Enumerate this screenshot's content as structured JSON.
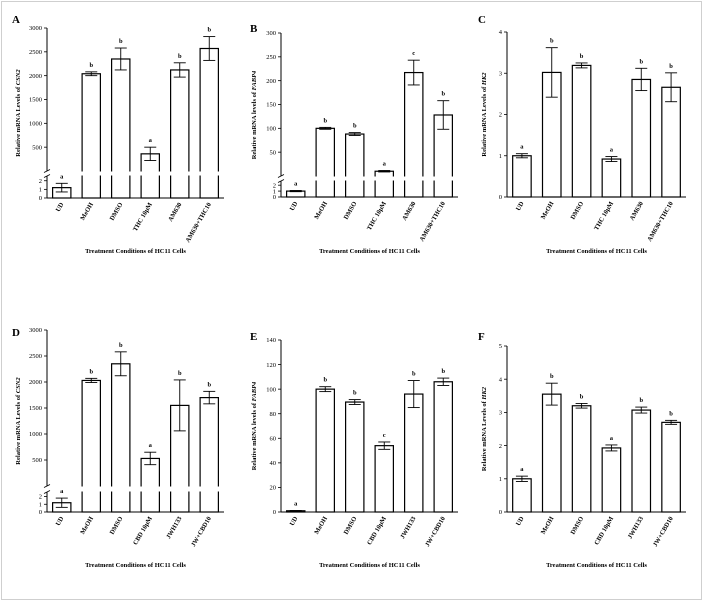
{
  "figure": {
    "type": "multi-panel bar chart"
  },
  "chart_data": [
    {
      "panel": "A",
      "type": "bar",
      "broken_axis": true,
      "title": "",
      "ylabel_prefix": "Relative mRNA Levels of ",
      "ylabel_gene": "CSN2",
      "xlabel": "Treatment Conditions of HC11 Cells",
      "categories": [
        "UD",
        "MeOH",
        "DMSO",
        "THC 10μM",
        "AM630",
        "AM630+THC10"
      ],
      "values": [
        1.2,
        2040,
        2350,
        360,
        2120,
        2570
      ],
      "errors": [
        0.5,
        40,
        230,
        140,
        150,
        250
      ],
      "letters": [
        "a",
        "b",
        "b",
        "a",
        "b",
        "b"
      ],
      "lower_ticks": [
        0,
        1,
        2
      ],
      "lower_ylim": [
        0,
        2.2
      ],
      "upper_ticks": [
        500,
        1000,
        1500,
        2000,
        2500,
        3000
      ],
      "upper_ylim": [
        0,
        3000
      ]
    },
    {
      "panel": "B",
      "type": "bar",
      "broken_axis": true,
      "title": "",
      "ylabel_prefix": "Relative mRNA levels of ",
      "ylabel_gene": "FABP4",
      "xlabel": "Treatment Conditions of HC11 Cells",
      "categories": [
        "UD",
        "MeOH",
        "DMSO",
        "THC 10μM",
        "AM630",
        "AM630+THC10"
      ],
      "values": [
        1.0,
        100,
        88,
        10,
        217,
        128
      ],
      "errors": [
        0.1,
        2,
        3,
        1.5,
        26,
        30
      ],
      "letters": [
        "a",
        "b",
        "b",
        "a",
        "c",
        "b"
      ],
      "lower_ticks": [
        0,
        1,
        2
      ],
      "lower_ylim": [
        0,
        2.2
      ],
      "upper_ticks": [
        50,
        100,
        150,
        200,
        250,
        300
      ],
      "upper_ylim": [
        0,
        300
      ]
    },
    {
      "panel": "C",
      "type": "bar",
      "broken_axis": false,
      "title": "",
      "ylabel_prefix": "Relative mRNA Levels of ",
      "ylabel_gene": "HK2",
      "xlabel": "Treatment Conditions of HC11 Cells",
      "categories": [
        "UD",
        "MeOH",
        "DMSO",
        "THC 10μM",
        "AM630",
        "AM630+THC10"
      ],
      "values": [
        1.0,
        3.02,
        3.19,
        0.92,
        2.85,
        2.66
      ],
      "errors": [
        0.05,
        0.6,
        0.06,
        0.06,
        0.27,
        0.35
      ],
      "letters": [
        "a",
        "b",
        "b",
        "a",
        "b",
        "b"
      ],
      "ticks": [
        0,
        1,
        2,
        3,
        4
      ],
      "ylim": [
        0,
        4
      ]
    },
    {
      "panel": "D",
      "type": "bar",
      "broken_axis": true,
      "title": "",
      "ylabel_prefix": "Relative mRNA Levels of ",
      "ylabel_gene": "CSN2",
      "xlabel": "Treatment Conditions of HC11 Cells",
      "categories": [
        "UD",
        "MeOH",
        "DMSO",
        "CBD 10μM",
        "JWH133",
        "JW+CBD10"
      ],
      "values": [
        1.2,
        2030,
        2350,
        530,
        1550,
        1700
      ],
      "errors": [
        0.6,
        40,
        230,
        120,
        490,
        120
      ],
      "letters": [
        "a",
        "b",
        "b",
        "a",
        "b",
        "b"
      ],
      "lower_ticks": [
        0,
        1,
        2
      ],
      "lower_ylim": [
        0,
        2.2
      ],
      "upper_ticks": [
        500,
        1000,
        1500,
        2000,
        2500,
        3000
      ],
      "upper_ylim": [
        0,
        3000
      ]
    },
    {
      "panel": "E",
      "type": "bar",
      "broken_axis": false,
      "title": "",
      "ylabel_prefix": "Relative mRNA levels of ",
      "ylabel_gene": "FABP4",
      "xlabel": "Treatment Conditions of HC11 Cells",
      "categories": [
        "UD",
        "MeOH",
        "DMSO",
        "CBD 10μM",
        "JWH133",
        "JW+CBD10"
      ],
      "values": [
        1,
        100,
        89.5,
        54,
        96,
        106
      ],
      "errors": [
        0.2,
        2,
        2,
        3,
        11,
        3
      ],
      "letters": [
        "a",
        "b",
        "b",
        "c",
        "b",
        "b"
      ],
      "ticks": [
        0,
        20,
        40,
        60,
        80,
        100,
        120,
        140
      ],
      "ylim": [
        0,
        140
      ]
    },
    {
      "panel": "F",
      "type": "bar",
      "broken_axis": false,
      "title": "",
      "ylabel_prefix": "Relative mRNA Levels of ",
      "ylabel_gene": "HK2",
      "xlabel": "Treatment Conditions of HC11 Cells",
      "categories": [
        "UD",
        "MeOH",
        "DMSO",
        "CBD 10μM",
        "JWH133",
        "JW+CBD10"
      ],
      "values": [
        1.0,
        3.55,
        3.2,
        1.93,
        3.07,
        2.7
      ],
      "errors": [
        0.08,
        0.33,
        0.07,
        0.09,
        0.09,
        0.06
      ],
      "letters": [
        "a",
        "b",
        "b",
        "a",
        "b",
        "b"
      ],
      "ticks": [
        0,
        1,
        2,
        3,
        4,
        5
      ],
      "ylim": [
        0,
        5
      ]
    }
  ]
}
